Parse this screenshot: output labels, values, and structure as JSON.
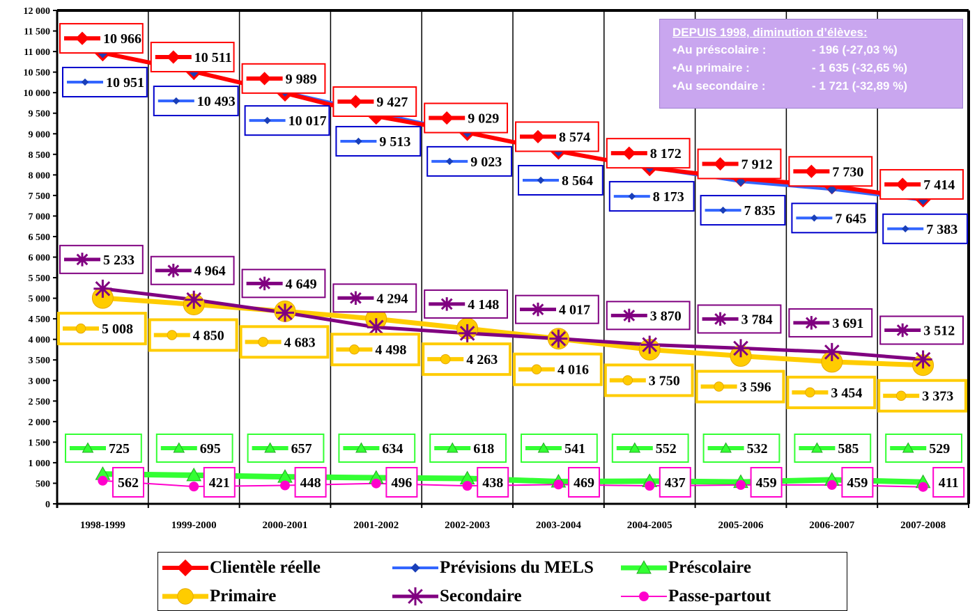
{
  "chart_data": {
    "type": "line",
    "categories": [
      "1998-1999",
      "1999-2000",
      "2000-2001",
      "2001-2002",
      "2002-2003",
      "2003-2004",
      "2004-2005",
      "2005-2006",
      "2006-2007",
      "2007-2008"
    ],
    "ylim": [
      0,
      12000
    ],
    "yticks": [
      0,
      500,
      1000,
      1500,
      2000,
      2500,
      3000,
      3500,
      4000,
      4500,
      5000,
      5500,
      6000,
      6500,
      7000,
      7500,
      8000,
      8500,
      9000,
      9500,
      10000,
      10500,
      11000,
      11500,
      12000
    ],
    "ytick_labels": [
      "0",
      "500",
      "1 000",
      "1 500",
      "2 000",
      "2 500",
      "3 000",
      "3 500",
      "4 000",
      "4 500",
      "5 000",
      "5 500",
      "6 000",
      "6 500",
      "7 000",
      "7 500",
      "8 000",
      "8 500",
      "9 000",
      "9 500",
      "10 000",
      "10 500",
      "11 000",
      "11 500",
      "12 000"
    ],
    "grid": "vertical",
    "legend_position": "bottom",
    "series": [
      {
        "name": "Clientèle réelle",
        "color": "#ff0000",
        "marker": "diamond",
        "values": [
          10966,
          10511,
          9989,
          9427,
          9029,
          8574,
          8172,
          7912,
          7730,
          7414
        ],
        "labels": [
          "10 966",
          "10 511",
          "9 989",
          "9 427",
          "9 029",
          "8 574",
          "8 172",
          "7 912",
          "7 730",
          "7 414"
        ]
      },
      {
        "name": "Prévisions du MELS",
        "color": "#3366ff",
        "marker": "diamond-small",
        "values": [
          10951,
          10493,
          10017,
          9513,
          9023,
          8564,
          8173,
          7835,
          7645,
          7383
        ],
        "labels": [
          "10 951",
          "10 493",
          "10 017",
          "9 513",
          "9 023",
          "8 564",
          "8 173",
          "7 835",
          "7 645",
          "7 383"
        ]
      },
      {
        "name": "Préscolaire",
        "color": "#33ff33",
        "marker": "triangle",
        "values": [
          725,
          695,
          657,
          634,
          618,
          541,
          552,
          532,
          585,
          529
        ],
        "labels": [
          "725",
          "695",
          "657",
          "634",
          "618",
          "541",
          "552",
          "532",
          "585",
          "529"
        ]
      },
      {
        "name": "Primaire",
        "color": "#ffcc00",
        "marker": "circle",
        "values": [
          5008,
          4850,
          4683,
          4498,
          4263,
          4016,
          3750,
          3596,
          3454,
          3373
        ],
        "labels": [
          "5 008",
          "4 850",
          "4 683",
          "4 498",
          "4 263",
          "4 016",
          "3 750",
          "3 596",
          "3 454",
          "3 373"
        ]
      },
      {
        "name": "Secondaire",
        "color": "#800080",
        "marker": "star",
        "values": [
          5233,
          4964,
          4649,
          4294,
          4148,
          4017,
          3870,
          3784,
          3691,
          3512
        ],
        "labels": [
          "5 233",
          "4 964",
          "4 649",
          "4 294",
          "4 148",
          "4 017",
          "3 870",
          "3 784",
          "3 691",
          "3 512"
        ]
      },
      {
        "name": "Passe-partout",
        "color": "#ff00cc",
        "marker": "circle-small",
        "values": [
          562,
          421,
          448,
          496,
          438,
          469,
          437,
          459,
          459,
          411
        ],
        "labels": [
          "562",
          "421",
          "448",
          "496",
          "438",
          "469",
          "437",
          "459",
          "459",
          "411"
        ]
      }
    ]
  },
  "note": {
    "title": "DEPUIS 1998, diminution d’élèves:",
    "lines": [
      {
        "label": "•Au préscolaire :",
        "value": "- 196 (-27,03 %)"
      },
      {
        "label": "•Au primaire :",
        "value": "- 1 635 (-32,65 %)"
      },
      {
        "label": "•Au secondaire :",
        "value": "- 1 721 (-32,89 %)"
      }
    ]
  }
}
